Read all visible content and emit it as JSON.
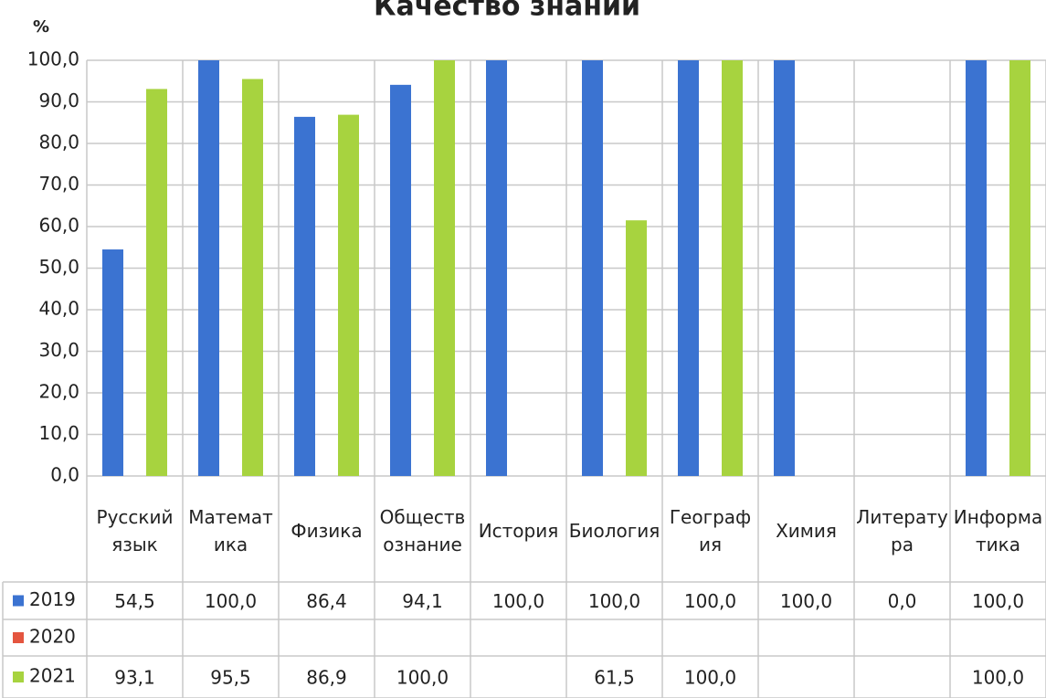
{
  "chart_data": {
    "type": "bar",
    "title": "Качество знаний",
    "y_label": "%",
    "categories": [
      "Русский язык",
      "Математика",
      "Физика",
      "Обществознание",
      "История",
      "Биология",
      "География",
      "Химия",
      "Литература",
      "Информатика"
    ],
    "series": [
      {
        "name": "2019",
        "color": "#3b73d1",
        "values": [
          54.5,
          100,
          86.4,
          94.1,
          100,
          100,
          100,
          100,
          0,
          100
        ],
        "value_labels": [
          "54,5",
          "100,0",
          "86,4",
          "94,1",
          "100,0",
          "100,0",
          "100,0",
          "100,0",
          "0,0",
          "100,0"
        ]
      },
      {
        "name": "2020",
        "color": "#e4553f",
        "values": [
          null,
          null,
          null,
          null,
          null,
          null,
          null,
          null,
          null,
          null
        ]
      },
      {
        "name": "2021",
        "color": "#a7d33f",
        "values": [
          93.1,
          95.5,
          86.9,
          100,
          null,
          61.5,
          100,
          null,
          null,
          100
        ],
        "value_labels": [
          "93,1",
          "95,5",
          "86,9",
          "100,0",
          null,
          "61,5",
          "100,0",
          null,
          null,
          "100,0"
        ]
      }
    ],
    "ylim": [
      0,
      100
    ],
    "yticks": [
      {
        "value": 0,
        "label": "0,0"
      },
      {
        "value": 10,
        "label": "10,0"
      },
      {
        "value": 20,
        "label": "20,0"
      },
      {
        "value": 30,
        "label": "30,0"
      },
      {
        "value": 40,
        "label": "40,0"
      },
      {
        "value": 50,
        "label": "50,0"
      },
      {
        "value": 60,
        "label": "60,0"
      },
      {
        "value": 70,
        "label": "70,0"
      },
      {
        "value": 80,
        "label": "80,0"
      },
      {
        "value": 90,
        "label": "90,0"
      },
      {
        "value": 100,
        "label": "100,0"
      }
    ],
    "grid": true
  }
}
